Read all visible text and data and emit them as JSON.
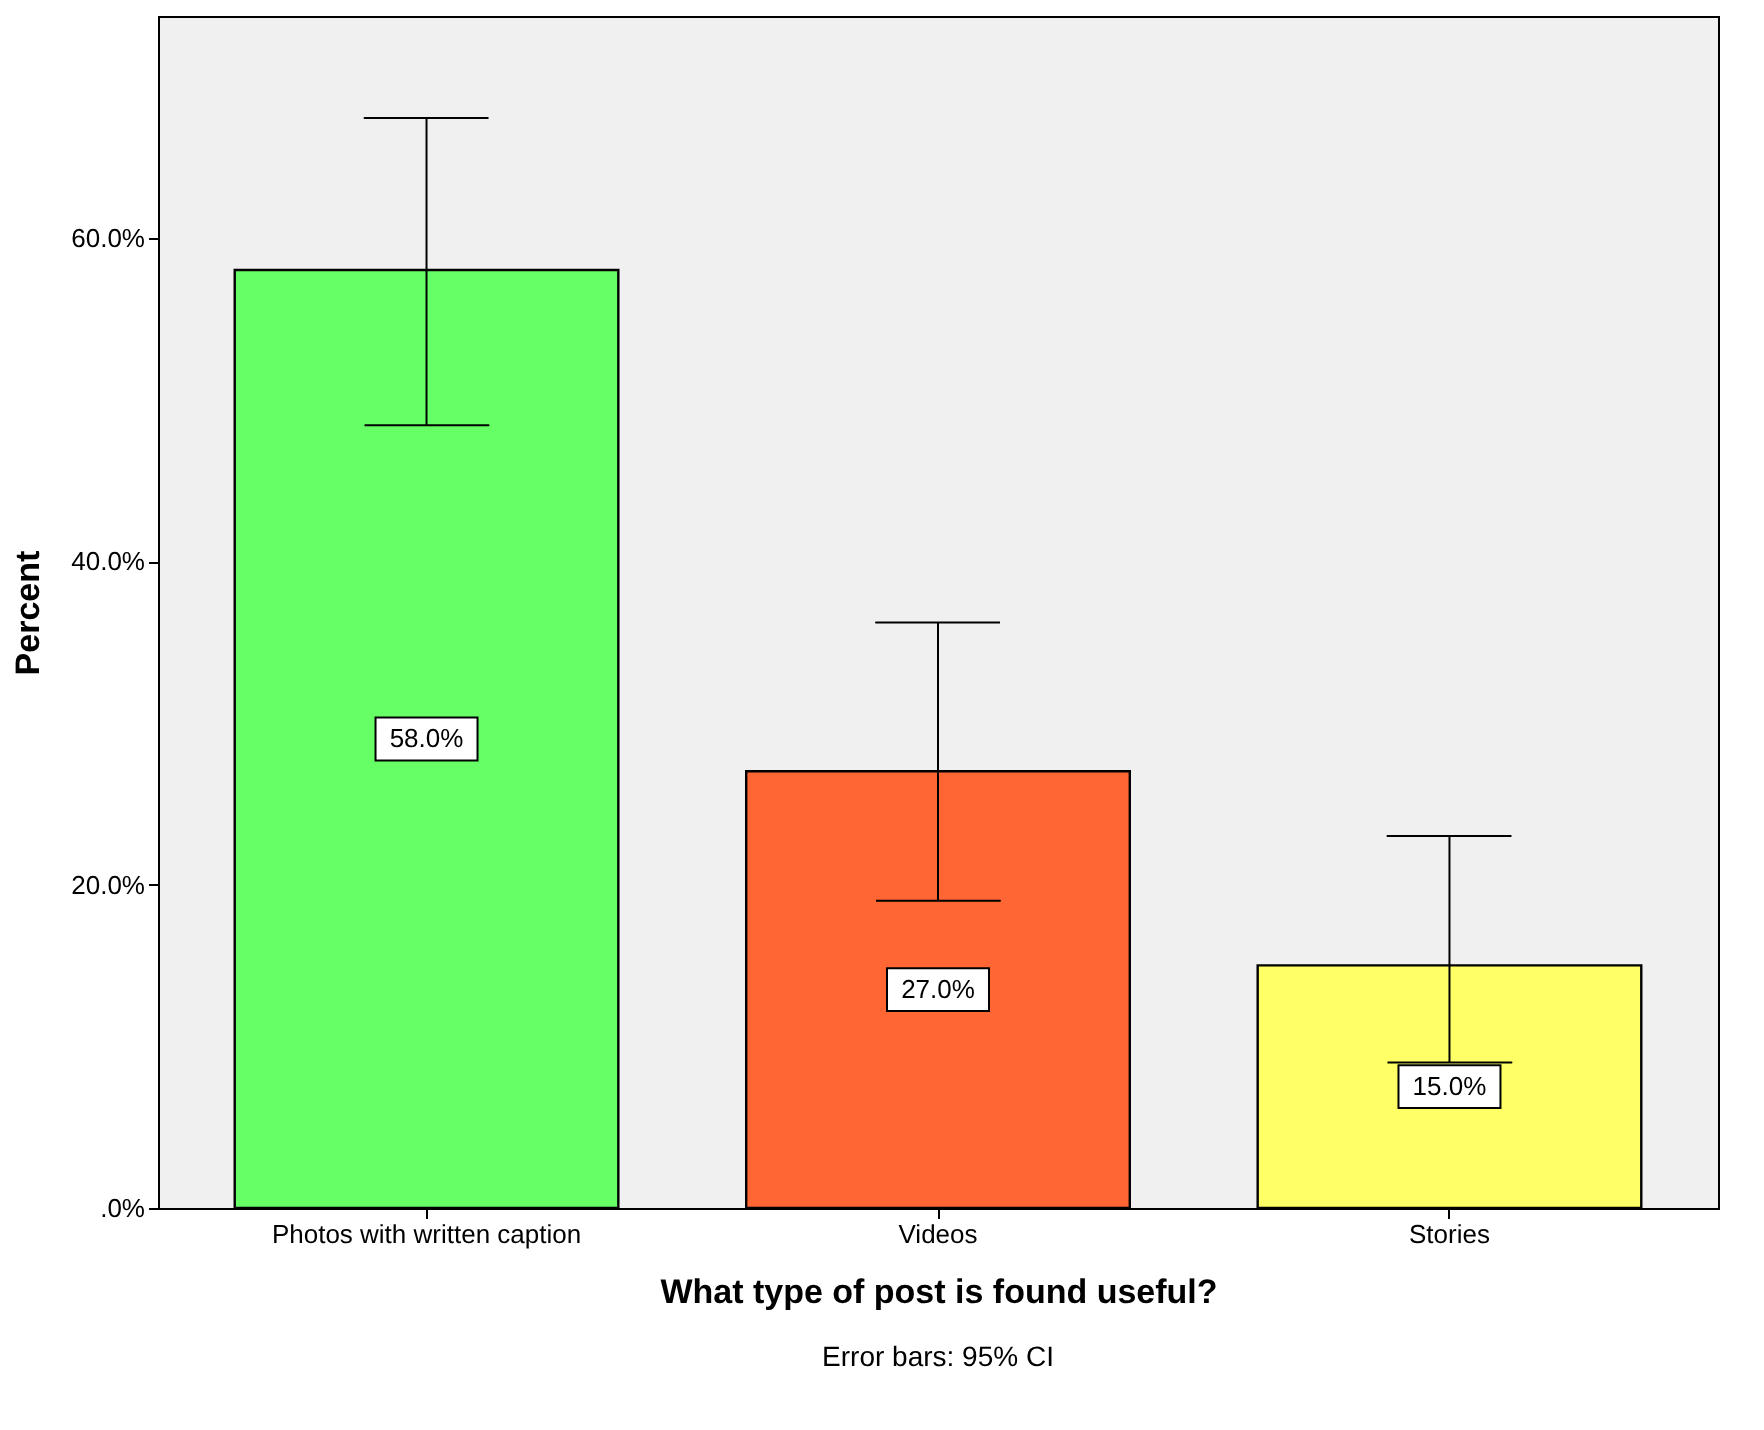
{
  "chart_data": {
    "type": "bar",
    "categories": [
      "Photos with written caption",
      "Videos",
      "Stories"
    ],
    "values": [
      58.0,
      27.0,
      15.0
    ],
    "colors": [
      "#66ff66",
      "#ff6633",
      "#ffff66"
    ],
    "errors": [
      [
        48.4,
        67.4
      ],
      [
        19.0,
        36.2
      ],
      [
        9.0,
        23.0
      ]
    ],
    "value_labels": [
      "58.0%",
      "27.0%",
      "15.0%"
    ],
    "xlabel": "What type of post is found useful?",
    "ylabel": "Percent",
    "ylim": [
      0,
      73.7
    ],
    "yticks": [
      {
        "value": 0,
        "label": ".0%"
      },
      {
        "value": 20,
        "label": "20.0%"
      },
      {
        "value": 40,
        "label": "40.0%"
      },
      {
        "value": 60,
        "label": "60.0%"
      }
    ],
    "grid": false,
    "legend": false,
    "annotations": [
      "Error bars: 95% CI"
    ]
  }
}
